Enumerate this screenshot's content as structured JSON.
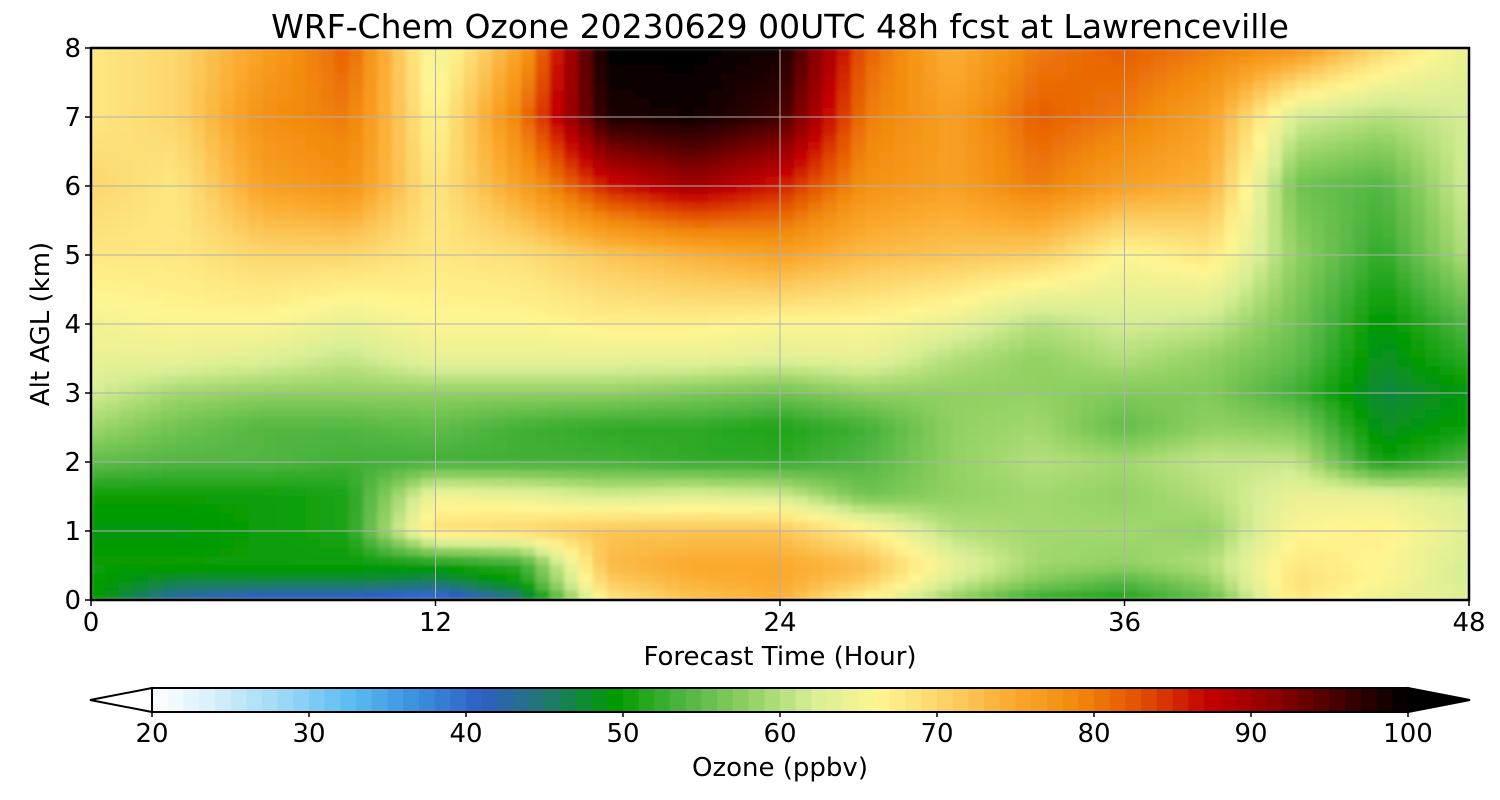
{
  "chart_data": {
    "type": "heatmap",
    "title": "WRF-Chem Ozone  20230629 00UTC 48h fcst at Lawrenceville",
    "xlabel": "Forecast Time (Hour)",
    "ylabel": "Alt AGL (km)",
    "xlim": [
      0,
      48
    ],
    "ylim": [
      0,
      8
    ],
    "x_ticks": [
      0,
      12,
      24,
      36,
      48
    ],
    "y_ticks": [
      0,
      1,
      2,
      3,
      4,
      5,
      6,
      7,
      8
    ],
    "grid": true,
    "colorbar": {
      "label": "Ozone  (ppbv)",
      "min": 20,
      "max": 100,
      "ticks": [
        20,
        30,
        40,
        50,
        60,
        70,
        80,
        90,
        100
      ],
      "extend": "both",
      "colors": [
        "#ffffff",
        "#d4eefb",
        "#9ad8f6",
        "#5cbcf2",
        "#3b8fdf",
        "#2d5fc2",
        "#1f7a6e",
        "#009a00",
        "#4db43f",
        "#8fd061",
        "#d8ee95",
        "#fff591",
        "#fcd267",
        "#fbaa2f",
        "#f28a0c",
        "#e24c00",
        "#c30000",
        "#8a0000",
        "#400000",
        "#000000"
      ]
    },
    "z_values_ppbv": {
      "x_hours": [
        0,
        3,
        6,
        9,
        12,
        15,
        18,
        21,
        24,
        27,
        30,
        33,
        36,
        39,
        42,
        45,
        48
      ],
      "alt_km": [
        0,
        0.25,
        0.5,
        1,
        1.5,
        2,
        2.5,
        3,
        3.5,
        4,
        5,
        6,
        7,
        8
      ],
      "rows": [
        [
          50,
          42,
          40,
          40,
          38,
          44,
          68,
          72,
          74,
          66,
          58,
          52,
          51,
          55,
          68,
          64,
          63
        ],
        [
          50,
          47,
          47,
          47,
          46,
          50,
          71,
          74,
          75,
          71,
          62,
          57,
          54,
          58,
          69,
          66,
          62
        ],
        [
          50,
          50,
          50,
          50,
          50,
          52,
          73,
          75,
          75,
          73,
          64,
          59,
          58,
          60,
          68,
          66,
          62
        ],
        [
          49,
          49,
          50,
          51,
          69,
          70,
          72,
          72,
          72,
          67,
          60,
          59,
          59,
          58,
          66,
          67,
          63
        ],
        [
          50,
          50,
          50,
          51,
          65,
          64,
          62,
          63,
          62,
          56,
          58,
          59,
          58,
          60,
          64,
          64,
          62
        ],
        [
          55,
          54,
          54,
          53,
          53,
          53,
          53,
          52,
          52,
          54,
          58,
          60,
          59,
          61,
          61,
          50,
          54
        ],
        [
          59,
          56,
          54,
          54,
          55,
          53,
          52,
          52,
          51,
          53,
          58,
          59,
          55,
          58,
          57,
          48,
          50
        ],
        [
          62,
          59,
          58,
          58,
          58,
          58,
          58,
          57,
          56,
          58,
          58,
          58,
          57,
          57,
          53,
          47,
          49
        ],
        [
          64,
          64,
          63,
          61,
          64,
          64,
          64,
          64,
          63,
          64,
          60,
          58,
          60,
          58,
          55,
          48,
          52
        ],
        [
          65,
          66,
          66,
          64,
          66,
          66,
          67,
          67,
          66,
          66,
          64,
          60,
          62,
          61,
          56,
          49,
          54
        ],
        [
          68,
          68,
          70,
          70,
          68,
          69,
          72,
          74,
          76,
          73,
          72,
          71,
          66,
          68,
          58,
          52,
          60
        ],
        [
          70,
          68,
          76,
          78,
          68,
          76,
          86,
          90,
          86,
          78,
          76,
          80,
          76,
          74,
          56,
          54,
          62
        ],
        [
          68,
          70,
          78,
          80,
          66,
          80,
          98,
          99,
          96,
          80,
          76,
          82,
          80,
          76,
          62,
          60,
          62
        ],
        [
          68,
          70,
          76,
          82,
          64,
          76,
          100,
          100,
          99,
          82,
          74,
          80,
          82,
          80,
          78,
          70,
          64
        ]
      ]
    }
  }
}
